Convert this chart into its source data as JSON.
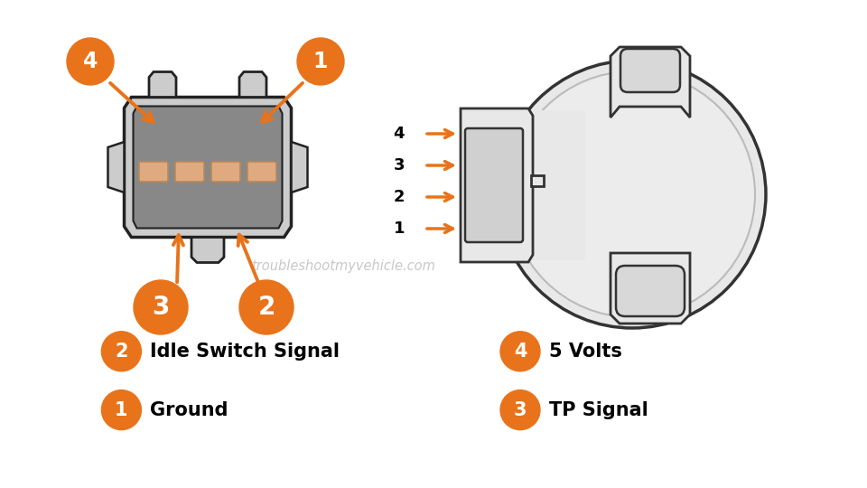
{
  "background_color": "#ffffff",
  "orange_color": "#E8731A",
  "connector_fill": "#888888",
  "connector_outline": "#222222",
  "connector_light": "#cccccc",
  "sensor_fill": "#e8e8e8",
  "sensor_outline": "#333333",
  "arrow_color": "#E8731A",
  "watermark": "troubleshootmyvehicle.com",
  "pin_labels": [
    "4",
    "3",
    "2",
    "1"
  ],
  "legend": [
    {
      "num": "1",
      "label": "Ground",
      "col": 0.14,
      "row": 0.84
    },
    {
      "num": "2",
      "label": "Idle Switch Signal",
      "col": 0.14,
      "row": 0.72
    },
    {
      "num": "3",
      "label": "TP Signal",
      "col": 0.6,
      "row": 0.84
    },
    {
      "num": "4",
      "label": "5 Volts",
      "col": 0.6,
      "row": 0.72
    }
  ]
}
